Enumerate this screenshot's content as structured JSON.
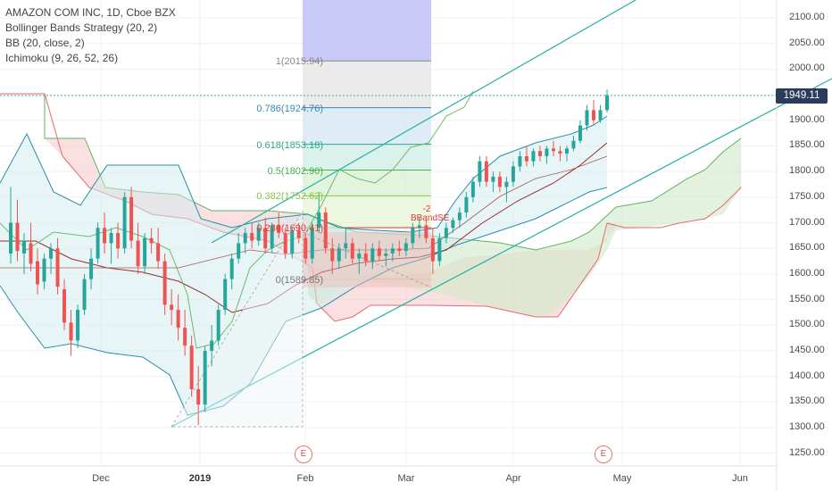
{
  "legend": {
    "symbol": "AMAZON COM INC, 1D, Cboe BZX",
    "strategy": "Bollinger Bands Strategy (20, 2)",
    "bb": "BB (20, close, 2)",
    "ichimoku": "Ichimoku (9, 26, 52, 26)"
  },
  "price_badge": "1949.11",
  "colors": {
    "up": "#26a69a",
    "down": "#ef5350",
    "bb": "#2a8fa8",
    "basis": "#8b2a2a",
    "kumo_green": "#7ac27a",
    "kumo_red": "#e57373",
    "channel": "#22b0a4",
    "badge": "#2a3c5a"
  },
  "events": {
    "label": "E"
  },
  "signal": {
    "value": "-2",
    "label": "BBandSE"
  },
  "chart_data": {
    "type": "candlestick",
    "title": "AMAZON COM INC, 1D, Cboe BZX",
    "y_ticks": [
      "2100.00",
      "2050.00",
      "2000.00",
      "1950.00",
      "1900.00",
      "1850.00",
      "1800.00",
      "1750.00",
      "1700.00",
      "1650.00",
      "1600.00",
      "1550.00",
      "1500.00",
      "1450.00",
      "1400.00",
      "1350.00",
      "1300.00",
      "1250.00"
    ],
    "x_ticks": [
      {
        "label": "Dec",
        "bold": false
      },
      {
        "label": "2019",
        "bold": true
      },
      {
        "label": "Feb",
        "bold": false
      },
      {
        "label": "Mar",
        "bold": false
      },
      {
        "label": "Apr",
        "bold": false
      },
      {
        "label": "May",
        "bold": false
      },
      {
        "label": "Jun",
        "bold": false
      }
    ],
    "ylim": [
      1225,
      2135
    ],
    "last_price": 1949.11,
    "fib_levels": [
      {
        "label": "1(2015.94)",
        "value": 2015.94,
        "color": "#888888"
      },
      {
        "label": "0.786(1924.76)",
        "value": 1924.76,
        "color": "#3d84b8"
      },
      {
        "label": "0.618(1853.18)",
        "value": 1853.18,
        "color": "#2aa88a"
      },
      {
        "label": "0.5(1802.90)",
        "value": 1802.9,
        "color": "#4caf50"
      },
      {
        "label": "0.382(1752.62)",
        "value": 1752.62,
        "color": "#8bc34a"
      },
      {
        "label": "0.236(1690.41)",
        "value": 1690.41,
        "color": "#e53935"
      },
      {
        "label": "0(1589.85)",
        "value": 1589.85,
        "color": "#777777"
      }
    ],
    "candles": [
      [
        1640,
        1770,
        1620,
        1700
      ],
      [
        1700,
        1745,
        1625,
        1645
      ],
      [
        1640,
        1680,
        1600,
        1665
      ],
      [
        1660,
        1700,
        1605,
        1620
      ],
      [
        1625,
        1650,
        1560,
        1580
      ],
      [
        1585,
        1640,
        1570,
        1630
      ],
      [
        1630,
        1660,
        1600,
        1650
      ],
      [
        1650,
        1670,
        1560,
        1575
      ],
      [
        1570,
        1590,
        1490,
        1505
      ],
      [
        1505,
        1530,
        1440,
        1470
      ],
      [
        1470,
        1540,
        1455,
        1530
      ],
      [
        1530,
        1600,
        1520,
        1590
      ],
      [
        1590,
        1650,
        1570,
        1630
      ],
      [
        1630,
        1700,
        1620,
        1690
      ],
      [
        1690,
        1720,
        1640,
        1660
      ],
      [
        1660,
        1690,
        1620,
        1680
      ],
      [
        1680,
        1700,
        1630,
        1650
      ],
      [
        1650,
        1760,
        1640,
        1750
      ],
      [
        1750,
        1770,
        1650,
        1665
      ],
      [
        1665,
        1700,
        1600,
        1615
      ],
      [
        1615,
        1680,
        1600,
        1670
      ],
      [
        1670,
        1690,
        1640,
        1660
      ],
      [
        1660,
        1690,
        1610,
        1625
      ],
      [
        1625,
        1640,
        1520,
        1540
      ],
      [
        1540,
        1570,
        1500,
        1530
      ],
      [
        1530,
        1560,
        1470,
        1495
      ],
      [
        1495,
        1530,
        1440,
        1460
      ],
      [
        1460,
        1480,
        1360,
        1375
      ],
      [
        1375,
        1420,
        1305,
        1345
      ],
      [
        1345,
        1460,
        1330,
        1450
      ],
      [
        1450,
        1500,
        1420,
        1470
      ],
      [
        1470,
        1540,
        1460,
        1530
      ],
      [
        1530,
        1600,
        1520,
        1590
      ],
      [
        1590,
        1640,
        1570,
        1630
      ],
      [
        1630,
        1680,
        1620,
        1660
      ],
      [
        1660,
        1690,
        1640,
        1680
      ],
      [
        1680,
        1700,
        1650,
        1665
      ],
      [
        1665,
        1700,
        1655,
        1690
      ],
      [
        1690,
        1710,
        1640,
        1650
      ],
      [
        1650,
        1700,
        1640,
        1695
      ],
      [
        1695,
        1720,
        1670,
        1680
      ],
      [
        1680,
        1690,
        1630,
        1640
      ],
      [
        1640,
        1690,
        1630,
        1685
      ],
      [
        1685,
        1700,
        1660,
        1670
      ],
      [
        1670,
        1680,
        1620,
        1630
      ],
      [
        1630,
        1700,
        1620,
        1690
      ],
      [
        1690,
        1760,
        1680,
        1720
      ],
      [
        1720,
        1730,
        1640,
        1650
      ],
      [
        1650,
        1670,
        1600,
        1625
      ],
      [
        1625,
        1660,
        1610,
        1650
      ],
      [
        1650,
        1690,
        1630,
        1660
      ],
      [
        1660,
        1670,
        1620,
        1630
      ],
      [
        1630,
        1650,
        1600,
        1640
      ],
      [
        1640,
        1660,
        1615,
        1625
      ],
      [
        1625,
        1660,
        1610,
        1650
      ],
      [
        1650,
        1665,
        1625,
        1635
      ],
      [
        1635,
        1650,
        1615,
        1640
      ],
      [
        1640,
        1660,
        1625,
        1650
      ],
      [
        1650,
        1665,
        1635,
        1645
      ],
      [
        1645,
        1670,
        1635,
        1660
      ],
      [
        1660,
        1700,
        1650,
        1690
      ],
      [
        1690,
        1710,
        1670,
        1695
      ],
      [
        1695,
        1705,
        1660,
        1670
      ],
      [
        1670,
        1690,
        1600,
        1625
      ],
      [
        1625,
        1680,
        1615,
        1670
      ],
      [
        1670,
        1700,
        1660,
        1690
      ],
      [
        1690,
        1710,
        1680,
        1705
      ],
      [
        1705,
        1730,
        1690,
        1720
      ],
      [
        1720,
        1760,
        1710,
        1750
      ],
      [
        1750,
        1790,
        1740,
        1780
      ],
      [
        1780,
        1830,
        1770,
        1820
      ],
      [
        1820,
        1830,
        1770,
        1780
      ],
      [
        1780,
        1800,
        1760,
        1790
      ],
      [
        1790,
        1800,
        1760,
        1770
      ],
      [
        1770,
        1790,
        1740,
        1780
      ],
      [
        1780,
        1820,
        1770,
        1810
      ],
      [
        1810,
        1840,
        1800,
        1830
      ],
      [
        1830,
        1850,
        1810,
        1820
      ],
      [
        1820,
        1845,
        1810,
        1840
      ],
      [
        1840,
        1850,
        1820,
        1830
      ],
      [
        1830,
        1850,
        1815,
        1845
      ],
      [
        1845,
        1860,
        1830,
        1840
      ],
      [
        1840,
        1850,
        1820,
        1835
      ],
      [
        1835,
        1850,
        1820,
        1845
      ],
      [
        1845,
        1870,
        1840,
        1860
      ],
      [
        1860,
        1900,
        1855,
        1890
      ],
      [
        1890,
        1930,
        1880,
        1920
      ],
      [
        1920,
        1940,
        1890,
        1900
      ],
      [
        1900,
        1930,
        1895,
        1920
      ],
      [
        1920,
        1960,
        1915,
        1949
      ]
    ]
  }
}
